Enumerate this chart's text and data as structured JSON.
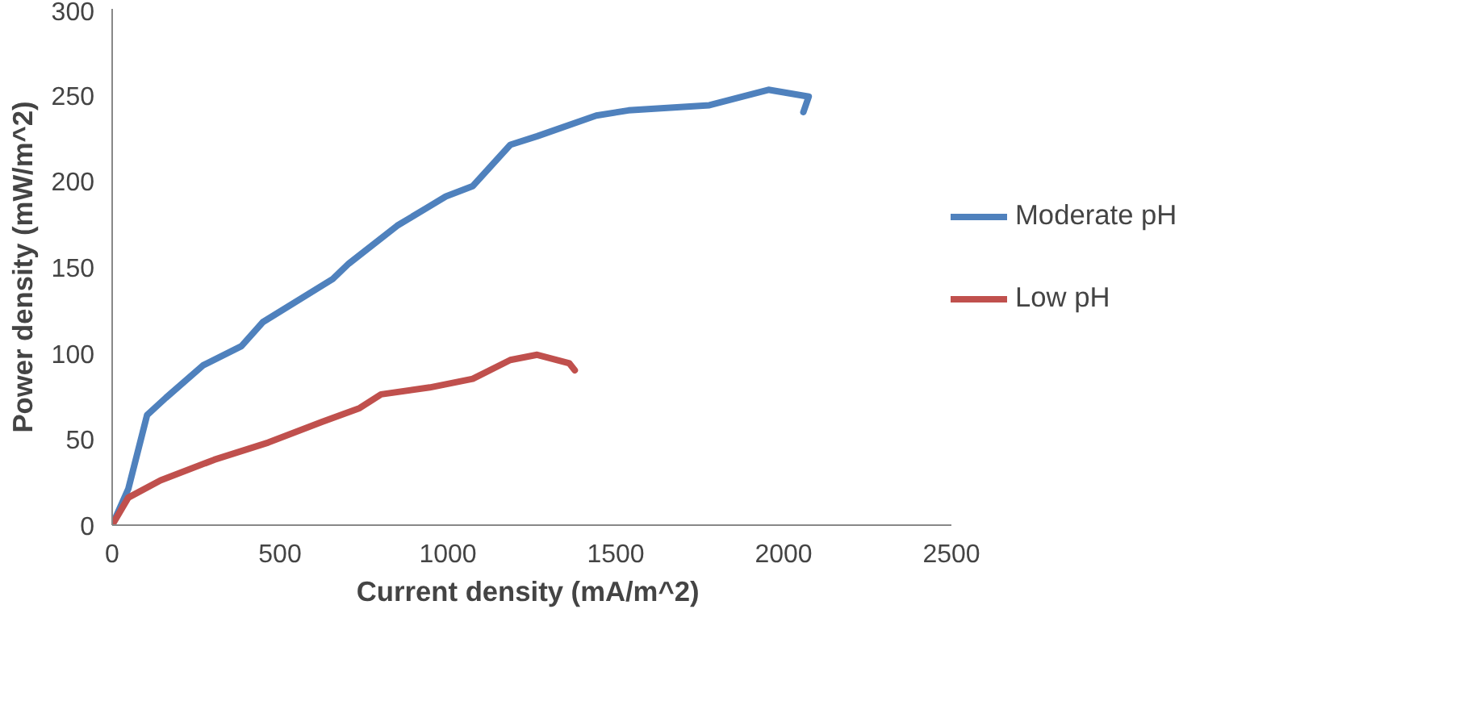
{
  "chart_data": {
    "type": "line",
    "xlabel": "Current density  (mA/m^2)",
    "ylabel": "Power density (mW/m^2)",
    "xlim": [
      0,
      2500
    ],
    "xticks": [
      0,
      500,
      1000,
      1500,
      2000,
      2500
    ],
    "ylim": [
      0,
      300
    ],
    "yticks": [
      0,
      50,
      100,
      150,
      200,
      250,
      300
    ],
    "grid": false,
    "legend": "right",
    "marker": "none",
    "line_style": "solid",
    "series": [
      {
        "name": "Moderate pH",
        "color": "#4f81bd",
        "x": [
          0,
          48,
          104,
          160,
          272,
          385,
          449,
          657,
          705,
          849,
          994,
          1074,
          1186,
          1266,
          1442,
          1538,
          1779,
          1955,
          2075,
          2059
        ],
        "values": [
          0,
          21,
          64,
          74,
          93,
          104,
          118,
          143,
          152,
          174,
          191,
          197,
          221,
          226,
          238,
          241,
          244,
          253,
          249,
          240
        ]
      },
      {
        "name": "Low pH",
        "color": "#c0504d",
        "x": [
          0,
          48,
          144,
          304,
          465,
          625,
          737,
          801,
          946,
          1074,
          1186,
          1266,
          1362,
          1378
        ],
        "values": [
          0,
          16,
          26,
          38,
          48,
          60,
          68,
          76,
          80,
          85,
          96,
          99,
          94,
          90
        ]
      }
    ]
  }
}
